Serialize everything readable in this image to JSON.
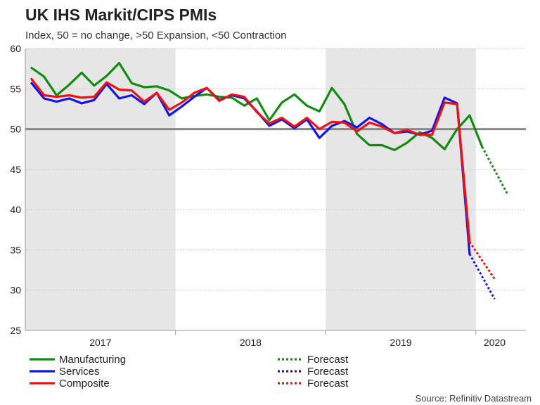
{
  "header": {
    "title": "UK IHS Markit/CIPS PMIs",
    "subtitle": "Index, 50 = no change, >50 Expansion, <50 Contraction"
  },
  "footer": {
    "source": "Source: Refinitiv Datastream"
  },
  "colors": {
    "manufacturing": "#118c11",
    "services": "#1414e6",
    "composite": "#ee1111",
    "reference": "#888888",
    "shade": "#e6e6e6",
    "grid": "#c8c8c8"
  },
  "chart_data": {
    "type": "line",
    "title": "UK IHS Markit/CIPS PMIs",
    "subtitle": "Index, 50 = no change, >50 Expansion, <50 Contraction",
    "x_unit": "month index (0 = Jan 2017)",
    "xlim": [
      -0.5,
      39.5
    ],
    "ylim": [
      25,
      60
    ],
    "yticks": [
      25,
      30,
      35,
      40,
      45,
      50,
      55,
      60
    ],
    "grid": true,
    "reference_line": 50,
    "shaded_years": [
      2017,
      2019
    ],
    "year_labels": [
      {
        "label": "2017",
        "x": 5.5
      },
      {
        "label": "2018",
        "x": 17.5
      },
      {
        "label": "2019",
        "x": 29.5
      },
      {
        "label": "2020",
        "x": 37
      }
    ],
    "series": [
      {
        "name": "Manufacturing",
        "values": [
          57.6,
          56.5,
          54.2,
          55.5,
          57.0,
          55.4,
          56.6,
          58.2,
          55.7,
          55.2,
          55.3,
          54.8,
          53.8,
          54.1,
          54.3,
          54.0,
          53.9,
          52.9,
          53.8,
          51.1,
          53.3,
          54.3,
          52.9,
          52.2,
          55.1,
          53.1,
          49.4,
          48.0,
          48.0,
          47.4,
          48.3,
          49.6,
          48.9,
          47.5,
          50.0,
          51.7,
          47.8
        ]
      },
      {
        "name": "Services",
        "values": [
          55.7,
          53.8,
          53.4,
          53.8,
          53.2,
          53.6,
          55.6,
          53.8,
          54.2,
          53.1,
          54.5,
          51.7,
          52.8,
          54.0,
          55.1,
          53.6,
          54.2,
          53.8,
          52.2,
          50.4,
          51.2,
          50.1,
          51.2,
          48.9,
          50.4,
          51.0,
          50.2,
          51.4,
          50.6,
          49.5,
          49.7,
          49.3,
          49.8,
          53.9,
          53.2,
          34.5
        ]
      },
      {
        "name": "Composite",
        "values": [
          56.2,
          54.2,
          54.0,
          54.2,
          53.9,
          54.0,
          55.8,
          54.9,
          54.8,
          53.4,
          54.5,
          52.4,
          53.3,
          54.5,
          55.1,
          53.5,
          54.3,
          54.0,
          52.1,
          50.7,
          51.4,
          50.3,
          51.4,
          50.0,
          50.9,
          50.8,
          49.7,
          50.8,
          50.3,
          49.5,
          49.9,
          49.3,
          49.3,
          53.3,
          53.1,
          36.0
        ]
      }
    ],
    "forecasts": [
      {
        "name": "Forecast",
        "of": "Manufacturing",
        "x": [
          36,
          38
        ],
        "values": [
          47.8,
          42.0
        ]
      },
      {
        "name": "Forecast",
        "of": "Services",
        "x": [
          35,
          37
        ],
        "values": [
          34.5,
          28.9
        ]
      },
      {
        "name": "Forecast",
        "of": "Composite",
        "x": [
          35,
          37
        ],
        "values": [
          36.0,
          31.4
        ]
      }
    ],
    "legend": [
      {
        "label": "Manufacturing",
        "series": "manufacturing",
        "style": "solid"
      },
      {
        "label": "Services",
        "series": "services",
        "style": "solid"
      },
      {
        "label": "Composite",
        "series": "composite",
        "style": "solid"
      },
      {
        "label": "Forecast",
        "series": "manufacturing",
        "style": "dotted"
      },
      {
        "label": "Forecast",
        "series": "services",
        "style": "dotted"
      },
      {
        "label": "Forecast",
        "series": "composite",
        "style": "dotted"
      }
    ],
    "legend_placement": "bottom"
  }
}
